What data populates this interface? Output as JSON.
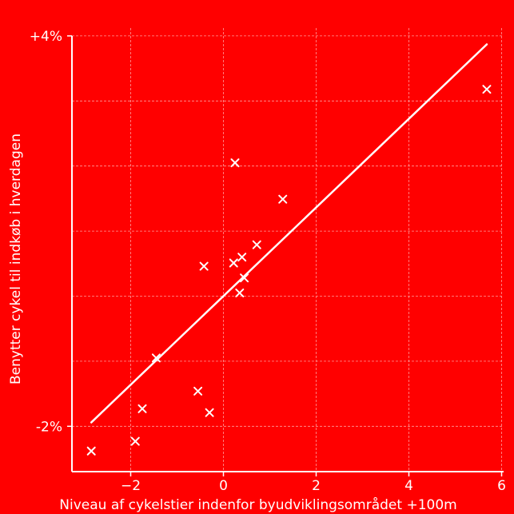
{
  "colors": {
    "background": "#ff0000",
    "foreground": "#ffffff",
    "grid": "#ff9a9a"
  },
  "chart_data": {
    "type": "scatter",
    "title": "",
    "xlabel": "Niveau af cykelstier indenfor byudviklingsområdet +100m",
    "ylabel": "Benytter cykel til indkøb i hverdagen",
    "xlim": [
      -3.3,
      6.2
    ],
    "ylim": [
      -2.4,
      4.4
    ],
    "grid": true,
    "marker": "x",
    "x_ticks": [
      {
        "value": -2,
        "label": "−2"
      },
      {
        "value": 0,
        "label": "0"
      },
      {
        "value": 2,
        "label": "2"
      },
      {
        "value": 4,
        "label": "4"
      },
      {
        "value": 6,
        "label": "6"
      }
    ],
    "y_ticks": [
      {
        "value": -2,
        "label": "-2%"
      },
      {
        "value": 4,
        "label": "+4%"
      }
    ],
    "y_grid_values": [
      -2,
      -1,
      0,
      1,
      2,
      3,
      4
    ],
    "points": [
      {
        "x": -2.85,
        "y": -2.38
      },
      {
        "x": -1.9,
        "y": -2.23
      },
      {
        "x": -1.75,
        "y": -1.73
      },
      {
        "x": -1.45,
        "y": -0.95
      },
      {
        "x": -0.55,
        "y": -1.46
      },
      {
        "x": -0.42,
        "y": 0.46
      },
      {
        "x": -0.3,
        "y": -1.79
      },
      {
        "x": 0.22,
        "y": 0.51
      },
      {
        "x": 0.25,
        "y": 2.05
      },
      {
        "x": 0.35,
        "y": 0.05
      },
      {
        "x": 0.4,
        "y": 0.6
      },
      {
        "x": 0.45,
        "y": 0.28
      },
      {
        "x": 0.72,
        "y": 0.79
      },
      {
        "x": 1.28,
        "y": 1.49
      },
      {
        "x": 5.68,
        "y": 3.18
      }
    ],
    "trend_line": {
      "x": [
        -2.85,
        5.68
      ],
      "y": [
        -1.94,
        3.87
      ]
    }
  }
}
